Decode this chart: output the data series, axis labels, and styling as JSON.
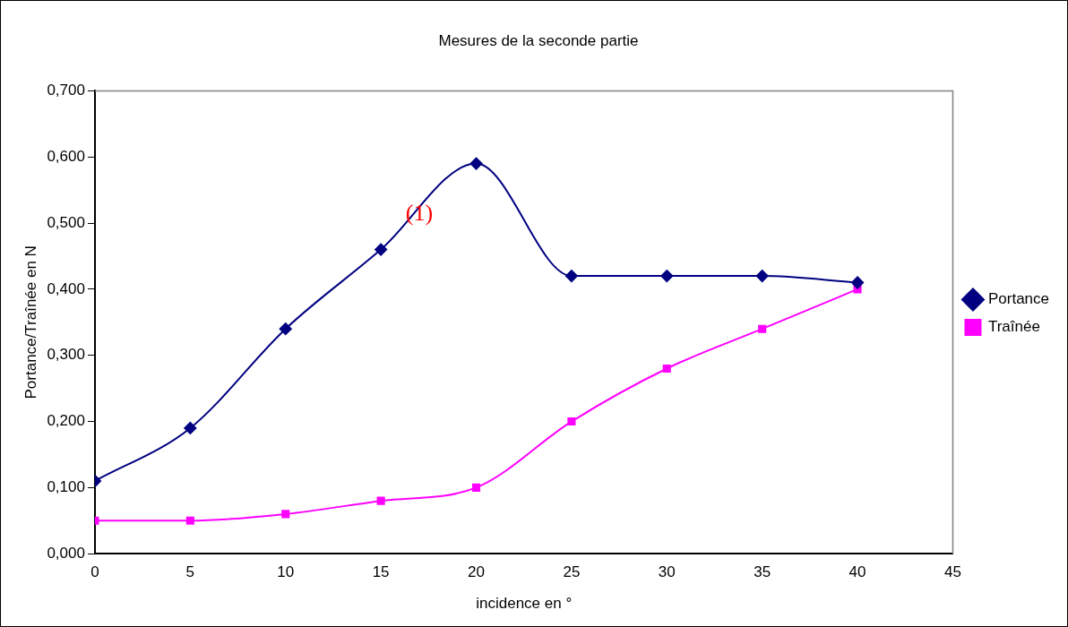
{
  "chart_data": {
    "type": "line",
    "title": "Mesures de la seconde partie",
    "xlabel": "incidence en °",
    "ylabel": "Portance/Traînée en N",
    "x": [
      0,
      5,
      10,
      15,
      20,
      25,
      30,
      35,
      40
    ],
    "series": [
      {
        "name": "Portance",
        "color": "#000080",
        "marker": "diamond",
        "values": [
          0.11,
          0.19,
          0.34,
          0.46,
          0.59,
          0.42,
          0.42,
          0.42,
          0.41
        ]
      },
      {
        "name": "Traînée",
        "color": "#ff00ff",
        "marker": "square",
        "values": [
          0.05,
          0.05,
          0.06,
          0.08,
          0.1,
          0.2,
          0.28,
          0.34,
          0.4
        ]
      }
    ],
    "xlim": [
      0,
      45
    ],
    "xticks": [
      0,
      5,
      10,
      15,
      20,
      25,
      30,
      35,
      40,
      45
    ],
    "ylim": [
      0,
      0.7
    ],
    "yticks": [
      {
        "value": 0,
        "label": "0,000"
      },
      {
        "value": 0.1,
        "label": "0,100"
      },
      {
        "value": 0.2,
        "label": "0,200"
      },
      {
        "value": 0.3,
        "label": "0,300"
      },
      {
        "value": 0.4,
        "label": "0,400"
      },
      {
        "value": 0.5,
        "label": "0,500"
      },
      {
        "value": 0.6,
        "label": "0,600"
      },
      {
        "value": 0.7,
        "label": "0,700"
      }
    ],
    "annotations": [
      "(1)"
    ],
    "grid": false,
    "legend": "right",
    "line_style": "solid"
  }
}
